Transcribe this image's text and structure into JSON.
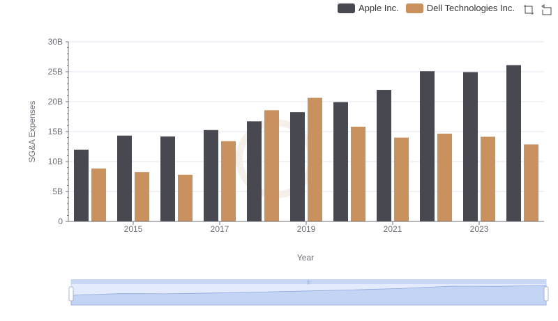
{
  "legend": {
    "items": [
      {
        "label": "Apple Inc.",
        "color": "#484851"
      },
      {
        "label": "Dell Technologies Inc.",
        "color": "#c8915d"
      }
    ]
  },
  "toolbox": {
    "icons": [
      "zoom-icon",
      "restore-icon"
    ]
  },
  "chart_data": {
    "type": "bar",
    "categories": [
      "2014",
      "2015",
      "2016",
      "2017",
      "2018",
      "2019",
      "2020",
      "2021",
      "2022",
      "2023",
      "2024"
    ],
    "x_tick_labels": [
      "2015",
      "2017",
      "2019",
      "2021",
      "2023"
    ],
    "xlabel": "Year",
    "ylabel": "SG&A Expenses",
    "ylim": [
      0,
      30000000000
    ],
    "y_tick_labels": [
      "0",
      "5B",
      "10B",
      "15B",
      "20B",
      "25B",
      "30B"
    ],
    "series": [
      {
        "name": "Apple Inc.",
        "color": "#484851",
        "values": [
          11990000000,
          14330000000,
          14190000000,
          15260000000,
          16710000000,
          18240000000,
          19920000000,
          21970000000,
          25090000000,
          24930000000,
          26100000000
        ]
      },
      {
        "name": "Dell Technologies Inc.",
        "color": "#c8915d",
        "values": [
          8830000000,
          8240000000,
          7800000000,
          13400000000,
          18570000000,
          20640000000,
          15820000000,
          14000000000,
          14660000000,
          14140000000,
          12860000000
        ]
      }
    ],
    "legend_position": "top-right",
    "grid": true,
    "data_zoom": {
      "start_percent": 0,
      "end_percent": 100
    }
  }
}
